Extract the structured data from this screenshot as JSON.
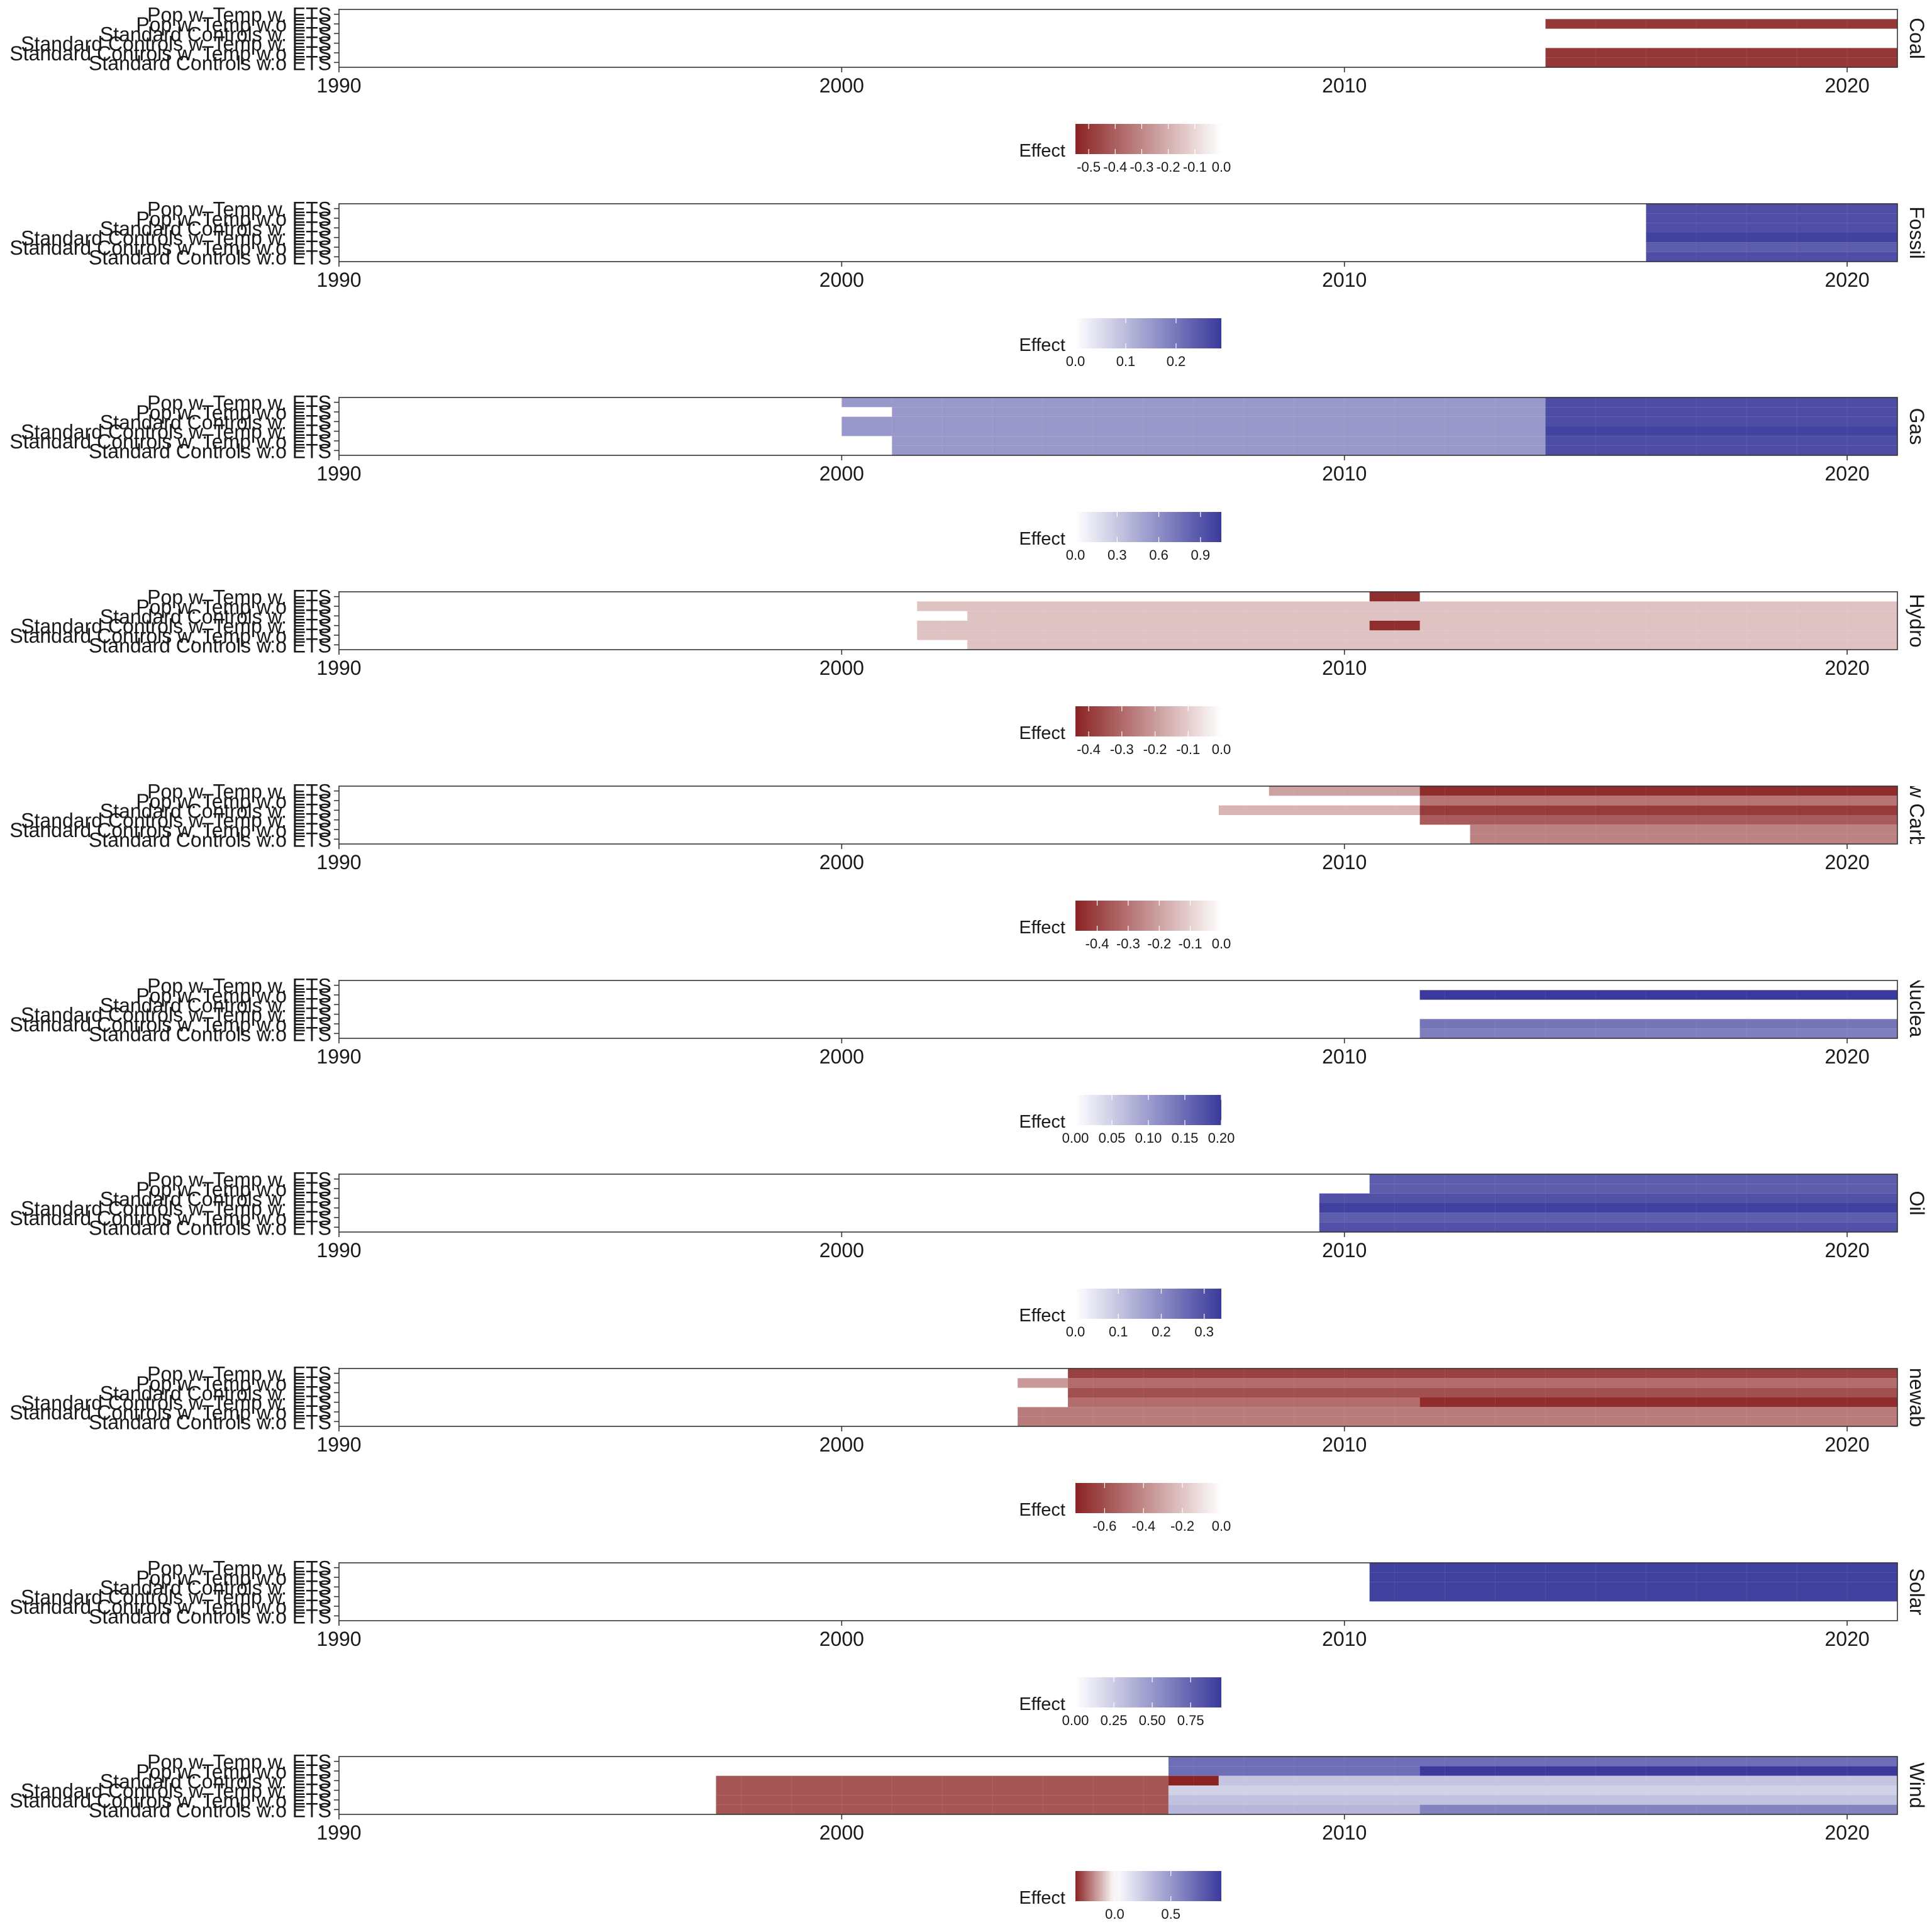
{
  "figure": {
    "background": "#ffffff",
    "cell_edge": "#ffffff"
  },
  "colors": {
    "negative": "#8b2323",
    "neutral": "#ffffff",
    "positive": "#3a3a9c"
  },
  "legend_title": "Effect",
  "chart_data": [
    {
      "type": "heatmap",
      "facet": "Coal",
      "xlim": [
        1990,
        2021
      ],
      "x_ticks": [
        1990,
        2000,
        2010,
        2020
      ],
      "rows": [
        "Pop w. Temp w. ETS",
        "Pop w. Temp w.o ETS",
        "Standard Controls w. ETS",
        "Standard Controls w. Temp w. ETS",
        "Standard Controls w. Temp w.o ETS",
        "Standard Controls w.o ETS"
      ],
      "cells": [
        {
          "row": 1,
          "x_start": 2014,
          "x_end": 2021,
          "value": -0.5
        },
        {
          "row": 4,
          "x_start": 2014,
          "x_end": 2021,
          "value": -0.5
        },
        {
          "row": 5,
          "x_start": 2014,
          "x_end": 2021,
          "value": -0.5
        }
      ],
      "legend": {
        "min": -0.55,
        "max": 0,
        "ticks": [
          -0.5,
          -0.4,
          -0.3,
          -0.2,
          -0.1,
          0.0
        ],
        "tick_labels": [
          "-0.5",
          "-0.4",
          "-0.3",
          "-0.2",
          "-0.1",
          "0.0"
        ]
      }
    },
    {
      "type": "heatmap",
      "facet": "Fossil",
      "xlim": [
        1990,
        2021
      ],
      "x_ticks": [
        1990,
        2000,
        2010,
        2020
      ],
      "rows": [
        "Pop w. Temp w. ETS",
        "Pop w. Temp w.o ETS",
        "Standard Controls w. ETS",
        "Standard Controls w. Temp w. ETS",
        "Standard Controls w. Temp w.o ETS",
        "Standard Controls w.o ETS"
      ],
      "cells": [
        {
          "row": 0,
          "x_start": 2016,
          "x_end": 2021,
          "value": 0.26
        },
        {
          "row": 1,
          "x_start": 2016,
          "x_end": 2021,
          "value": 0.26
        },
        {
          "row": 2,
          "x_start": 2016,
          "x_end": 2021,
          "value": 0.26
        },
        {
          "row": 3,
          "x_start": 2016,
          "x_end": 2021,
          "value": 0.28
        },
        {
          "row": 4,
          "x_start": 2016,
          "x_end": 2021,
          "value": 0.24
        },
        {
          "row": 5,
          "x_start": 2016,
          "x_end": 2021,
          "value": 0.26
        }
      ],
      "legend": {
        "min": 0,
        "max": 0.29,
        "ticks": [
          0.0,
          0.1,
          0.2
        ],
        "tick_labels": [
          "0.0",
          "0.1",
          "0.2"
        ]
      }
    },
    {
      "type": "heatmap",
      "facet": "Gas",
      "xlim": [
        1990,
        2021
      ],
      "x_ticks": [
        1990,
        2000,
        2010,
        2020
      ],
      "rows": [
        "Pop w. Temp w. ETS",
        "Pop w. Temp w.o ETS",
        "Standard Controls w. ETS",
        "Standard Controls w. Temp w. ETS",
        "Standard Controls w. Temp w.o ETS",
        "Standard Controls w.o ETS"
      ],
      "cells": [
        {
          "row": 0,
          "x_start": 2000,
          "x_end": 2014,
          "value": 0.55
        },
        {
          "row": 0,
          "x_start": 2014,
          "x_end": 2021,
          "value": 0.95
        },
        {
          "row": 1,
          "x_start": 2001,
          "x_end": 2014,
          "value": 0.55
        },
        {
          "row": 1,
          "x_start": 2014,
          "x_end": 2021,
          "value": 0.95
        },
        {
          "row": 2,
          "x_start": 2000,
          "x_end": 2014,
          "value": 0.55
        },
        {
          "row": 2,
          "x_start": 2014,
          "x_end": 2021,
          "value": 0.95
        },
        {
          "row": 3,
          "x_start": 2000,
          "x_end": 2014,
          "value": 0.55
        },
        {
          "row": 3,
          "x_start": 2014,
          "x_end": 2021,
          "value": 1.0
        },
        {
          "row": 4,
          "x_start": 2001,
          "x_end": 2014,
          "value": 0.55
        },
        {
          "row": 4,
          "x_start": 2014,
          "x_end": 2021,
          "value": 0.95
        },
        {
          "row": 5,
          "x_start": 2001,
          "x_end": 2014,
          "value": 0.55
        },
        {
          "row": 5,
          "x_start": 2014,
          "x_end": 2021,
          "value": 0.95
        }
      ],
      "legend": {
        "min": 0,
        "max": 1.05,
        "ticks": [
          0.0,
          0.3,
          0.6,
          0.9
        ],
        "tick_labels": [
          "0.0",
          "0.3",
          "0.6",
          "0.9"
        ]
      }
    },
    {
      "type": "heatmap",
      "facet": "Hydro",
      "xlim": [
        1990,
        2021
      ],
      "x_ticks": [
        1990,
        2000,
        2010,
        2020
      ],
      "rows": [
        "Pop w. Temp w. ETS",
        "Pop w. Temp w.o ETS",
        "Standard Controls w. ETS",
        "Standard Controls w. Temp w. ETS",
        "Standard Controls w. Temp w.o ETS",
        "Standard Controls w.o ETS"
      ],
      "cells": [
        {
          "row": 0,
          "x_start": 2010.5,
          "x_end": 2011.5,
          "value": -0.42
        },
        {
          "row": 1,
          "x_start": 2001.5,
          "x_end": 2021,
          "value": -0.12
        },
        {
          "row": 2,
          "x_start": 2002.5,
          "x_end": 2021,
          "value": -0.12
        },
        {
          "row": 3,
          "x_start": 2001.5,
          "x_end": 2021,
          "value": -0.12
        },
        {
          "row": 3,
          "x_start": 2010.5,
          "x_end": 2011.5,
          "value": -0.42
        },
        {
          "row": 4,
          "x_start": 2001.5,
          "x_end": 2021,
          "value": -0.12
        },
        {
          "row": 5,
          "x_start": 2002.5,
          "x_end": 2021,
          "value": -0.12
        }
      ],
      "legend": {
        "min": -0.44,
        "max": 0,
        "ticks": [
          -0.4,
          -0.3,
          -0.2,
          -0.1,
          0.0
        ],
        "tick_labels": [
          "-0.4",
          "-0.3",
          "-0.2",
          "-0.1",
          "0.0"
        ]
      }
    },
    {
      "type": "heatmap",
      "facet": "Low Carbon",
      "xlim": [
        1990,
        2021
      ],
      "x_ticks": [
        1990,
        2000,
        2010,
        2020
      ],
      "rows": [
        "Pop w. Temp w. ETS",
        "Pop w. Temp w.o ETS",
        "Standard Controls w. ETS",
        "Standard Controls w. Temp w. ETS",
        "Standard Controls w. Temp w.o ETS",
        "Standard Controls w.o ETS"
      ],
      "cells": [
        {
          "row": 0,
          "x_start": 2008.5,
          "x_end": 2011.5,
          "value": -0.2
        },
        {
          "row": 0,
          "x_start": 2011.5,
          "x_end": 2021,
          "value": -0.45
        },
        {
          "row": 1,
          "x_start": 2011.5,
          "x_end": 2021,
          "value": -0.3
        },
        {
          "row": 2,
          "x_start": 2007.5,
          "x_end": 2011.5,
          "value": -0.16
        },
        {
          "row": 2,
          "x_start": 2011.5,
          "x_end": 2021,
          "value": -0.42
        },
        {
          "row": 3,
          "x_start": 2011.5,
          "x_end": 2021,
          "value": -0.35
        },
        {
          "row": 4,
          "x_start": 2012.5,
          "x_end": 2021,
          "value": -0.27
        },
        {
          "row": 5,
          "x_start": 2012.5,
          "x_end": 2021,
          "value": -0.27
        }
      ],
      "legend": {
        "min": -0.47,
        "max": 0,
        "ticks": [
          -0.4,
          -0.3,
          -0.2,
          -0.1,
          0.0
        ],
        "tick_labels": [
          "-0.4",
          "-0.3",
          "-0.2",
          "-0.1",
          "0.0"
        ]
      }
    },
    {
      "type": "heatmap",
      "facet": "Nuclear",
      "xlim": [
        1990,
        2021
      ],
      "x_ticks": [
        1990,
        2000,
        2010,
        2020
      ],
      "rows": [
        "Pop w. Temp w. ETS",
        "Pop w. Temp w.o ETS",
        "Standard Controls w. ETS",
        "Standard Controls w. Temp w. ETS",
        "Standard Controls w. Temp w.o ETS",
        "Standard Controls w.o ETS"
      ],
      "cells": [
        {
          "row": 1,
          "x_start": 2011.5,
          "x_end": 2021,
          "value": 0.2
        },
        {
          "row": 4,
          "x_start": 2011.5,
          "x_end": 2021,
          "value": 0.14
        },
        {
          "row": 5,
          "x_start": 2011.5,
          "x_end": 2021,
          "value": 0.13
        }
      ],
      "legend": {
        "min": 0,
        "max": 0.2,
        "ticks": [
          0.0,
          0.05,
          0.1,
          0.15,
          0.2
        ],
        "tick_labels": [
          "0.00",
          "0.05",
          "0.10",
          "0.15",
          "0.20"
        ]
      }
    },
    {
      "type": "heatmap",
      "facet": "Oil",
      "xlim": [
        1990,
        2021
      ],
      "x_ticks": [
        1990,
        2000,
        2010,
        2020
      ],
      "rows": [
        "Pop w. Temp w. ETS",
        "Pop w. Temp w.o ETS",
        "Standard Controls w. ETS",
        "Standard Controls w. Temp w. ETS",
        "Standard Controls w. Temp w.o ETS",
        "Standard Controls w.o ETS"
      ],
      "cells": [
        {
          "row": 0,
          "x_start": 2010.5,
          "x_end": 2021,
          "value": 0.28
        },
        {
          "row": 1,
          "x_start": 2010.5,
          "x_end": 2021,
          "value": 0.28
        },
        {
          "row": 2,
          "x_start": 2009.5,
          "x_end": 2021,
          "value": 0.3
        },
        {
          "row": 3,
          "x_start": 2009.5,
          "x_end": 2021,
          "value": 0.33
        },
        {
          "row": 4,
          "x_start": 2009.5,
          "x_end": 2021,
          "value": 0.28
        },
        {
          "row": 5,
          "x_start": 2009.5,
          "x_end": 2021,
          "value": 0.3
        }
      ],
      "legend": {
        "min": 0,
        "max": 0.34,
        "ticks": [
          0.0,
          0.1,
          0.2,
          0.3
        ],
        "tick_labels": [
          "0.0",
          "0.1",
          "0.2",
          "0.3"
        ]
      }
    },
    {
      "type": "heatmap",
      "facet": "Renewables",
      "xlim": [
        1990,
        2021
      ],
      "x_ticks": [
        1990,
        2000,
        2010,
        2020
      ],
      "rows": [
        "Pop w. Temp w. ETS",
        "Pop w. Temp w.o ETS",
        "Standard Controls w. ETS",
        "Standard Controls w. Temp w. ETS",
        "Standard Controls w. Temp w.o ETS",
        "Standard Controls w.o ETS"
      ],
      "cells": [
        {
          "row": 0,
          "x_start": 2004.5,
          "x_end": 2021,
          "value": -0.65
        },
        {
          "row": 1,
          "x_start": 2003.5,
          "x_end": 2004.5,
          "value": -0.35
        },
        {
          "row": 1,
          "x_start": 2004.5,
          "x_end": 2021,
          "value": -0.5
        },
        {
          "row": 2,
          "x_start": 2004.5,
          "x_end": 2021,
          "value": -0.6
        },
        {
          "row": 3,
          "x_start": 2004.5,
          "x_end": 2011.5,
          "value": -0.5
        },
        {
          "row": 3,
          "x_start": 2011.5,
          "x_end": 2021,
          "value": -0.72
        },
        {
          "row": 4,
          "x_start": 2003.5,
          "x_end": 2021,
          "value": -0.45
        },
        {
          "row": 5,
          "x_start": 2003.5,
          "x_end": 2021,
          "value": -0.45
        }
      ],
      "legend": {
        "min": -0.75,
        "max": 0,
        "ticks": [
          -0.6,
          -0.4,
          -0.2,
          0.0
        ],
        "tick_labels": [
          "-0.6",
          "-0.4",
          "-0.2",
          "0.0"
        ]
      }
    },
    {
      "type": "heatmap",
      "facet": "Solar",
      "xlim": [
        1990,
        2021
      ],
      "x_ticks": [
        1990,
        2000,
        2010,
        2020
      ],
      "rows": [
        "Pop w. Temp w. ETS",
        "Pop w. Temp w.o ETS",
        "Standard Controls w. ETS",
        "Standard Controls w. Temp w. ETS",
        "Standard Controls w. Temp w.o ETS",
        "Standard Controls w.o ETS"
      ],
      "cells": [
        {
          "row": 0,
          "x_start": 2010.5,
          "x_end": 2021,
          "value": 0.92
        },
        {
          "row": 1,
          "x_start": 2010.5,
          "x_end": 2021,
          "value": 0.92
        },
        {
          "row": 2,
          "x_start": 2010.5,
          "x_end": 2021,
          "value": 0.92
        },
        {
          "row": 3,
          "x_start": 2010.5,
          "x_end": 2021,
          "value": 0.92
        }
      ],
      "legend": {
        "min": 0,
        "max": 0.95,
        "ticks": [
          0.0,
          0.25,
          0.5,
          0.75
        ],
        "tick_labels": [
          "0.00",
          "0.25",
          "0.50",
          "0.75"
        ]
      }
    },
    {
      "type": "heatmap",
      "facet": "Wind",
      "xlim": [
        1990,
        2021
      ],
      "x_ticks": [
        1990,
        2000,
        2010,
        2020
      ],
      "rows": [
        "Pop w. Temp w. ETS",
        "Pop w. Temp w.o ETS",
        "Standard Controls w. ETS",
        "Standard Controls w. Temp w. ETS",
        "Standard Controls w. Temp w.o ETS",
        "Standard Controls w.o ETS"
      ],
      "cells": [
        {
          "row": 0,
          "x_start": 2006.5,
          "x_end": 2021,
          "value": 0.7
        },
        {
          "row": 1,
          "x_start": 2006.5,
          "x_end": 2011.5,
          "value": 0.7
        },
        {
          "row": 1,
          "x_start": 2011.5,
          "x_end": 2021,
          "value": 0.95
        },
        {
          "row": 2,
          "x_start": 1997.5,
          "x_end": 2006.5,
          "value": -0.27
        },
        {
          "row": 2,
          "x_start": 2006.5,
          "x_end": 2007.5,
          "value": -0.35
        },
        {
          "row": 2,
          "x_start": 2007.5,
          "x_end": 2021,
          "value": 0.28
        },
        {
          "row": 3,
          "x_start": 1997.5,
          "x_end": 2006.5,
          "value": -0.27
        },
        {
          "row": 3,
          "x_start": 2006.5,
          "x_end": 2021,
          "value": 0.22
        },
        {
          "row": 4,
          "x_start": 1997.5,
          "x_end": 2006.5,
          "value": -0.27
        },
        {
          "row": 4,
          "x_start": 2006.5,
          "x_end": 2021,
          "value": 0.3
        },
        {
          "row": 5,
          "x_start": 1997.5,
          "x_end": 2006.5,
          "value": -0.27
        },
        {
          "row": 5,
          "x_start": 2006.5,
          "x_end": 2011.5,
          "value": 0.35
        },
        {
          "row": 5,
          "x_start": 2011.5,
          "x_end": 2021,
          "value": 0.6
        }
      ],
      "legend": {
        "min": -0.35,
        "max": 0.95,
        "ticks": [
          0.0,
          0.5
        ],
        "tick_labels": [
          "0.0",
          "0.5"
        ]
      }
    }
  ]
}
